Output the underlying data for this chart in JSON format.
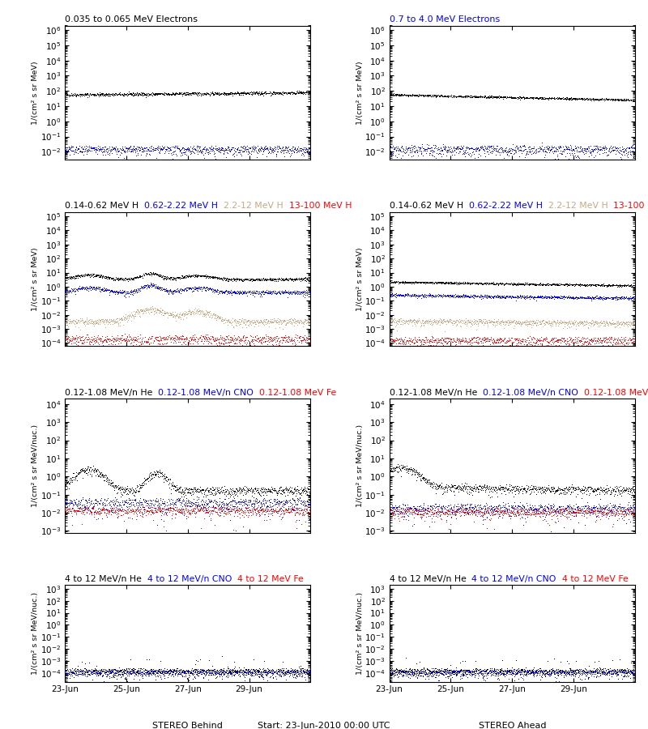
{
  "title_row1_left": "0.035 to 0.065 MeV Electrons",
  "title_row1_right": "0.7 to 4.0 MeV Electrons",
  "xlabel_left": "STEREO Behind",
  "xlabel_right": "STEREO Ahead",
  "xlabel_center": "Start: 23-Jun-2010 00:00 UTC",
  "ylabel_electrons": "1/(cm² s sr MeV)",
  "ylabel_protons": "1/(cm² s sr MeV)",
  "ylabel_heavy": "1/(cm² s sr MeV/nuc.)",
  "ylabel_heavy2": "1/(cm² s sr MeV/nuc.)",
  "xtick_labels": [
    "23-Jun",
    "25-Jun",
    "27-Jun",
    "29-Jun"
  ],
  "n_points": 800,
  "seed": 42,
  "row1_ylim": [
    0.003,
    2000000.0
  ],
  "row2_ylim": [
    6e-05,
    200000.0
  ],
  "row3_ylim": [
    0.0008,
    20000.0
  ],
  "row4_ylim": [
    2e-05,
    2000.0
  ],
  "tan_color": "#c8a882",
  "blue_color": "#0000ff",
  "red_color": "#ff0000"
}
